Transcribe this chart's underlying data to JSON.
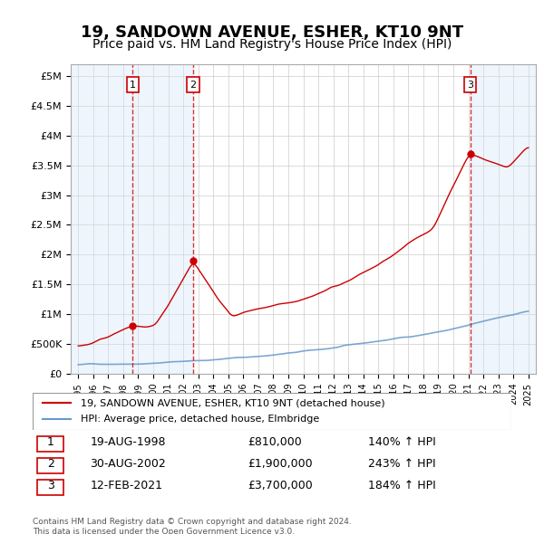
{
  "title": "19, SANDOWN AVENUE, ESHER, KT10 9NT",
  "subtitle": "Price paid vs. HM Land Registry's House Price Index (HPI)",
  "title_fontsize": 13,
  "subtitle_fontsize": 10,
  "background_color": "#ffffff",
  "plot_bg_color": "#ffffff",
  "grid_color": "#cccccc",
  "ylabel_ticks": [
    "£0",
    "£500K",
    "£1M",
    "£1.5M",
    "£2M",
    "£2.5M",
    "£3M",
    "£3.5M",
    "£4M",
    "£4.5M",
    "£5M"
  ],
  "ytick_values": [
    0,
    500000,
    1000000,
    1500000,
    2000000,
    2500000,
    3000000,
    3500000,
    4000000,
    4500000,
    5000000
  ],
  "ylim": [
    0,
    5200000
  ],
  "xlim_start": 1994.5,
  "xlim_end": 2025.5,
  "sale_dates": [
    1998.63,
    2002.66,
    2021.12
  ],
  "sale_prices": [
    810000,
    1900000,
    3700000
  ],
  "sale_labels": [
    "1",
    "2",
    "3"
  ],
  "vline_color": "#cc0000",
  "vline_style": "--",
  "sale_marker_color": "#cc0000",
  "hpi_line_color": "#6699cc",
  "hpi_line_alpha": 0.85,
  "price_line_color": "#cc0000",
  "legend_entries": [
    "19, SANDOWN AVENUE, ESHER, KT10 9NT (detached house)",
    "HPI: Average price, detached house, Elmbridge"
  ],
  "table_data": [
    [
      "1",
      "19-AUG-1998",
      "£810,000",
      "140% ↑ HPI"
    ],
    [
      "2",
      "30-AUG-2002",
      "£1,900,000",
      "243% ↑ HPI"
    ],
    [
      "3",
      "12-FEB-2021",
      "£3,700,000",
      "184% ↑ HPI"
    ]
  ],
  "footer_text": "Contains HM Land Registry data © Crown copyright and database right 2024.\nThis data is licensed under the Open Government Licence v3.0.",
  "shaded_color": "#d0e4f7",
  "shaded_alpha": 0.35,
  "label_box_color": "#ffffff",
  "label_box_edge": "#cc0000"
}
